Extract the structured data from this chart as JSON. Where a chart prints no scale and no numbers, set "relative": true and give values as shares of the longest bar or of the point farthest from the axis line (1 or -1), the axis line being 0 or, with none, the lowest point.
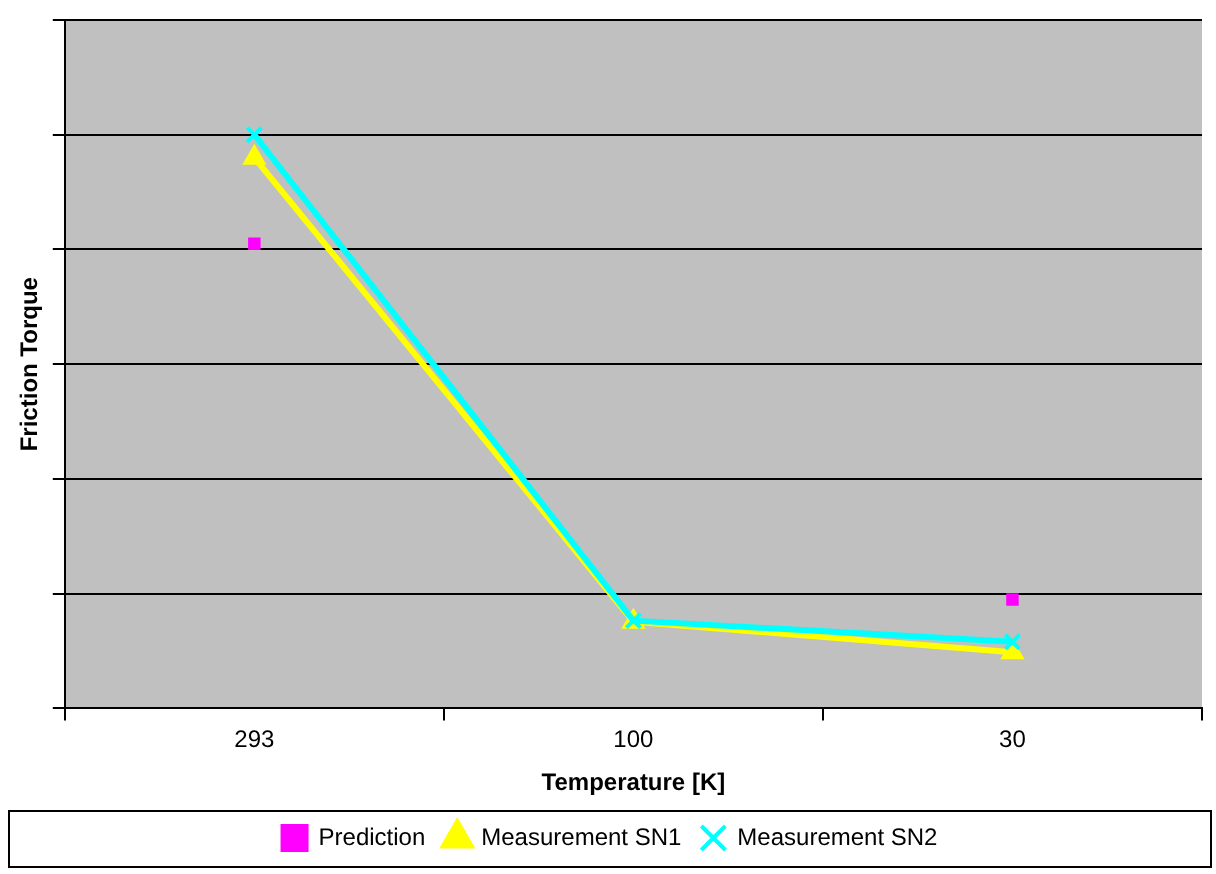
{
  "chart_data": {
    "type": "line",
    "relative": true,
    "xlabel": "Temperature [K]",
    "ylabel": "Friction Torque",
    "categories": [
      "293",
      "100",
      "30"
    ],
    "grid": "y",
    "legend": "bottom",
    "series": [
      {
        "name": "Prediction",
        "type": "scatter",
        "marker": "square",
        "color": "#ff00ff",
        "values": [
          0.81,
          null,
          0.19
        ]
      },
      {
        "name": "Measurement SN1",
        "marker": "triangle",
        "color": "#ffff00",
        "values": [
          0.96,
          0.151,
          0.098
        ]
      },
      {
        "name": "Measurement SN2",
        "marker": "cross",
        "color": "#00ffff",
        "values": [
          1,
          0.153,
          0.116
        ]
      }
    ]
  }
}
